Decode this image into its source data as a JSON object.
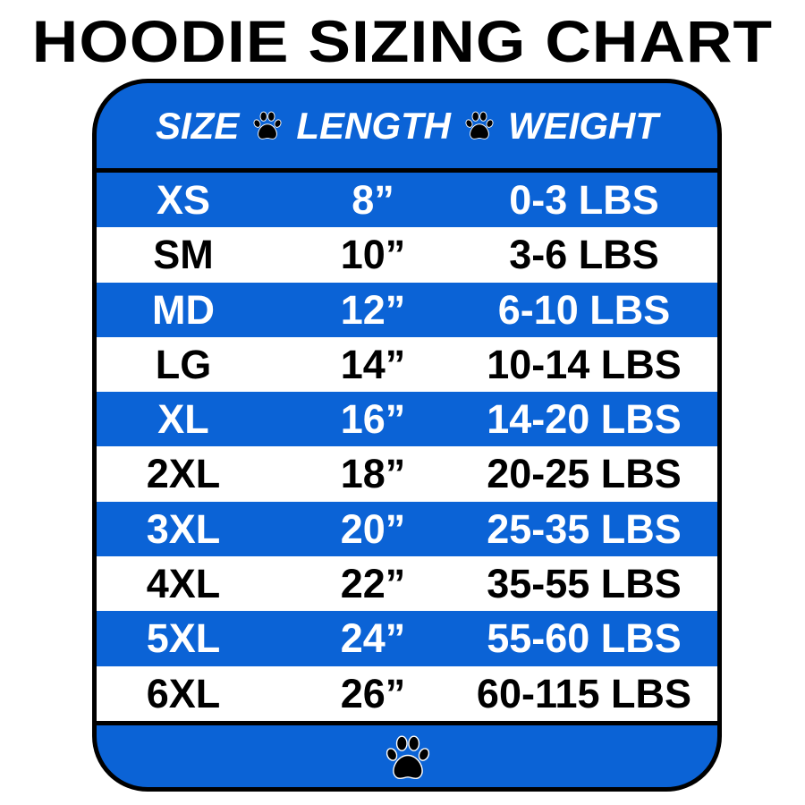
{
  "title": "HOODIE SIZING CHART",
  "colors": {
    "band_blue": "#0b63d6",
    "border": "#000000",
    "text_on_blue": "#ffffff",
    "text_on_white": "#000000"
  },
  "icons": {
    "header_separator": "paw-print-icon",
    "footer": "paw-print-icon"
  },
  "table": {
    "headers": [
      "SIZE",
      "LENGTH",
      "WEIGHT"
    ],
    "rows": [
      {
        "size": "XS",
        "length": "8”",
        "weight": "0-3 LBS"
      },
      {
        "size": "SM",
        "length": "10”",
        "weight": "3-6 LBS"
      },
      {
        "size": "MD",
        "length": "12”",
        "weight": "6-10 LBS"
      },
      {
        "size": "LG",
        "length": "14”",
        "weight": "10-14 LBS"
      },
      {
        "size": "XL",
        "length": "16”",
        "weight": "14-20 LBS"
      },
      {
        "size": "2XL",
        "length": "18”",
        "weight": "20-25 LBS"
      },
      {
        "size": "3XL",
        "length": "20”",
        "weight": "25-35 LBS"
      },
      {
        "size": "4XL",
        "length": "22”",
        "weight": "35-55 LBS"
      },
      {
        "size": "5XL",
        "length": "24”",
        "weight": "55-60 LBS"
      },
      {
        "size": "6XL",
        "length": "26”",
        "weight": "60-115 LBS"
      }
    ]
  }
}
